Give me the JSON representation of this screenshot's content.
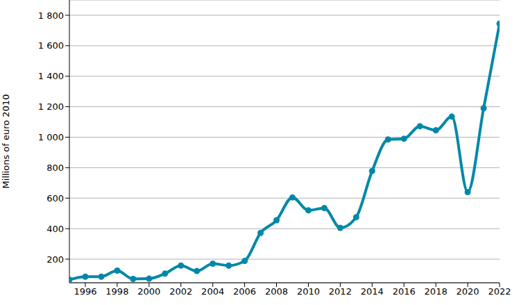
{
  "chart_data": {
    "type": "line",
    "y_label": "Millions of euro 2010",
    "x": [
      1995,
      1996,
      1997,
      1998,
      1999,
      2000,
      2001,
      2002,
      2003,
      2004,
      2005,
      2006,
      2007,
      2008,
      2009,
      2010,
      2011,
      2012,
      2013,
      2014,
      2015,
      2016,
      2017,
      2018,
      2019,
      2020,
      2021,
      2022
    ],
    "values": [
      65,
      85,
      85,
      125,
      70,
      72,
      105,
      158,
      122,
      170,
      158,
      188,
      372,
      455,
      605,
      520,
      535,
      405,
      475,
      778,
      985,
      990,
      1072,
      1045,
      1135,
      640,
      1190,
      1745
    ],
    "color": "#0088a8",
    "marker": "circle",
    "line_style": "solid",
    "grid": true,
    "xlim": [
      1995,
      2022
    ],
    "xticks": [
      1996,
      1998,
      2000,
      2002,
      2004,
      2006,
      2008,
      2010,
      2012,
      2014,
      2016,
      2018,
      2020,
      2022
    ],
    "ylim": [
      45,
      1900
    ],
    "yticks": [
      200,
      400,
      600,
      800,
      {
        "value": 1000,
        "label": "1 000"
      },
      {
        "value": 1200,
        "label": "1 200"
      },
      {
        "value": 1400,
        "label": "1 400"
      },
      {
        "value": 1600,
        "label": "1 600"
      },
      {
        "value": 1800,
        "label": "1 800"
      }
    ]
  }
}
